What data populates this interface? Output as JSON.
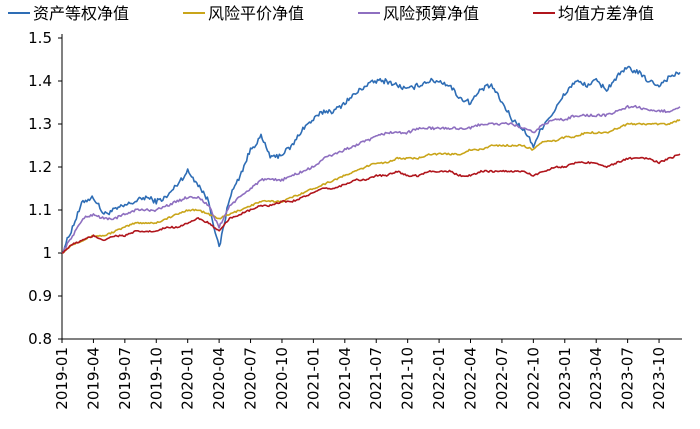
{
  "chart_data": {
    "type": "line",
    "title": "",
    "xlabel": "",
    "ylabel": "",
    "ylim": [
      0.8,
      1.5
    ],
    "yticks": [
      "0.8",
      "0.9",
      "1",
      "1.1",
      "1.2",
      "1.3",
      "1.4",
      "1.5"
    ],
    "xticks": [
      "2019-01",
      "2019-04",
      "2019-07",
      "2019-10",
      "2020-01",
      "2020-04",
      "2020-07",
      "2020-10",
      "2021-01",
      "2021-04",
      "2021-07",
      "2021-10",
      "2022-01",
      "2022-04",
      "2022-07",
      "2022-10",
      "2023-01",
      "2023-04",
      "2023-07",
      "2023-10"
    ],
    "grid": false,
    "legend_position": "top",
    "series": [
      {
        "name": "资产等权净值",
        "color": "#2e6db5",
        "points": [
          [
            "2019-01",
            1.0
          ],
          [
            "2019-02",
            1.06
          ],
          [
            "2019-03",
            1.12
          ],
          [
            "2019-04",
            1.13
          ],
          [
            "2019-05",
            1.09
          ],
          [
            "2019-06",
            1.1
          ],
          [
            "2019-07",
            1.11
          ],
          [
            "2019-08",
            1.12
          ],
          [
            "2019-09",
            1.13
          ],
          [
            "2019-10",
            1.12
          ],
          [
            "2019-11",
            1.13
          ],
          [
            "2019-12",
            1.16
          ],
          [
            "2020-01",
            1.19
          ],
          [
            "2020-02",
            1.16
          ],
          [
            "2020-03",
            1.12
          ],
          [
            "2020-04",
            1.01
          ],
          [
            "2020-05",
            1.13
          ],
          [
            "2020-06",
            1.18
          ],
          [
            "2020-07",
            1.24
          ],
          [
            "2020-08",
            1.27
          ],
          [
            "2020-09",
            1.22
          ],
          [
            "2020-10",
            1.23
          ],
          [
            "2020-11",
            1.25
          ],
          [
            "2020-12",
            1.29
          ],
          [
            "2021-01",
            1.31
          ],
          [
            "2021-02",
            1.33
          ],
          [
            "2021-03",
            1.33
          ],
          [
            "2021-04",
            1.35
          ],
          [
            "2021-05",
            1.37
          ],
          [
            "2021-06",
            1.39
          ],
          [
            "2021-07",
            1.4
          ],
          [
            "2021-08",
            1.4
          ],
          [
            "2021-09",
            1.39
          ],
          [
            "2021-10",
            1.38
          ],
          [
            "2021-11",
            1.39
          ],
          [
            "2021-12",
            1.4
          ],
          [
            "2022-01",
            1.4
          ],
          [
            "2022-02",
            1.39
          ],
          [
            "2022-03",
            1.36
          ],
          [
            "2022-04",
            1.35
          ],
          [
            "2022-05",
            1.38
          ],
          [
            "2022-06",
            1.39
          ],
          [
            "2022-07",
            1.35
          ],
          [
            "2022-08",
            1.31
          ],
          [
            "2022-09",
            1.29
          ],
          [
            "2022-10",
            1.25
          ],
          [
            "2022-11",
            1.3
          ],
          [
            "2022-12",
            1.33
          ],
          [
            "2023-01",
            1.37
          ],
          [
            "2023-02",
            1.4
          ],
          [
            "2023-03",
            1.39
          ],
          [
            "2023-04",
            1.4
          ],
          [
            "2023-05",
            1.38
          ],
          [
            "2023-06",
            1.41
          ],
          [
            "2023-07",
            1.43
          ],
          [
            "2023-08",
            1.42
          ],
          [
            "2023-09",
            1.4
          ],
          [
            "2023-10",
            1.39
          ],
          [
            "2023-11",
            1.41
          ],
          [
            "2023-12",
            1.42
          ]
        ]
      },
      {
        "name": "风险平价净值",
        "color": "#c9a51a",
        "points": [
          [
            "2019-01",
            1.0
          ],
          [
            "2019-02",
            1.02
          ],
          [
            "2019-03",
            1.03
          ],
          [
            "2019-04",
            1.04
          ],
          [
            "2019-05",
            1.04
          ],
          [
            "2019-06",
            1.05
          ],
          [
            "2019-07",
            1.06
          ],
          [
            "2019-08",
            1.07
          ],
          [
            "2019-09",
            1.07
          ],
          [
            "2019-10",
            1.07
          ],
          [
            "2019-11",
            1.08
          ],
          [
            "2019-12",
            1.09
          ],
          [
            "2020-01",
            1.1
          ],
          [
            "2020-02",
            1.1
          ],
          [
            "2020-03",
            1.09
          ],
          [
            "2020-04",
            1.08
          ],
          [
            "2020-05",
            1.09
          ],
          [
            "2020-06",
            1.1
          ],
          [
            "2020-07",
            1.11
          ],
          [
            "2020-08",
            1.12
          ],
          [
            "2020-09",
            1.12
          ],
          [
            "2020-10",
            1.12
          ],
          [
            "2020-11",
            1.13
          ],
          [
            "2020-12",
            1.14
          ],
          [
            "2021-01",
            1.15
          ],
          [
            "2021-02",
            1.16
          ],
          [
            "2021-03",
            1.17
          ],
          [
            "2021-04",
            1.18
          ],
          [
            "2021-05",
            1.19
          ],
          [
            "2021-06",
            1.2
          ],
          [
            "2021-07",
            1.21
          ],
          [
            "2021-08",
            1.21
          ],
          [
            "2021-09",
            1.22
          ],
          [
            "2021-10",
            1.22
          ],
          [
            "2021-11",
            1.22
          ],
          [
            "2021-12",
            1.23
          ],
          [
            "2022-01",
            1.23
          ],
          [
            "2022-02",
            1.23
          ],
          [
            "2022-03",
            1.23
          ],
          [
            "2022-04",
            1.24
          ],
          [
            "2022-05",
            1.24
          ],
          [
            "2022-06",
            1.25
          ],
          [
            "2022-07",
            1.25
          ],
          [
            "2022-08",
            1.25
          ],
          [
            "2022-09",
            1.25
          ],
          [
            "2022-10",
            1.24
          ],
          [
            "2022-11",
            1.26
          ],
          [
            "2022-12",
            1.26
          ],
          [
            "2023-01",
            1.27
          ],
          [
            "2023-02",
            1.27
          ],
          [
            "2023-03",
            1.28
          ],
          [
            "2023-04",
            1.28
          ],
          [
            "2023-05",
            1.28
          ],
          [
            "2023-06",
            1.29
          ],
          [
            "2023-07",
            1.3
          ],
          [
            "2023-08",
            1.3
          ],
          [
            "2023-09",
            1.3
          ],
          [
            "2023-10",
            1.3
          ],
          [
            "2023-11",
            1.3
          ],
          [
            "2023-12",
            1.31
          ]
        ]
      },
      {
        "name": "风险预算净值",
        "color": "#8e6fc0",
        "points": [
          [
            "2019-01",
            1.0
          ],
          [
            "2019-02",
            1.04
          ],
          [
            "2019-03",
            1.08
          ],
          [
            "2019-04",
            1.09
          ],
          [
            "2019-05",
            1.08
          ],
          [
            "2019-06",
            1.08
          ],
          [
            "2019-07",
            1.09
          ],
          [
            "2019-08",
            1.1
          ],
          [
            "2019-09",
            1.1
          ],
          [
            "2019-10",
            1.1
          ],
          [
            "2019-11",
            1.11
          ],
          [
            "2019-12",
            1.12
          ],
          [
            "2020-01",
            1.13
          ],
          [
            "2020-02",
            1.13
          ],
          [
            "2020-03",
            1.11
          ],
          [
            "2020-04",
            1.06
          ],
          [
            "2020-05",
            1.11
          ],
          [
            "2020-06",
            1.13
          ],
          [
            "2020-07",
            1.15
          ],
          [
            "2020-08",
            1.17
          ],
          [
            "2020-09",
            1.17
          ],
          [
            "2020-10",
            1.17
          ],
          [
            "2020-11",
            1.18
          ],
          [
            "2020-12",
            1.19
          ],
          [
            "2021-01",
            1.2
          ],
          [
            "2021-02",
            1.22
          ],
          [
            "2021-03",
            1.23
          ],
          [
            "2021-04",
            1.24
          ],
          [
            "2021-05",
            1.25
          ],
          [
            "2021-06",
            1.26
          ],
          [
            "2021-07",
            1.27
          ],
          [
            "2021-08",
            1.28
          ],
          [
            "2021-09",
            1.28
          ],
          [
            "2021-10",
            1.28
          ],
          [
            "2021-11",
            1.29
          ],
          [
            "2021-12",
            1.29
          ],
          [
            "2022-01",
            1.29
          ],
          [
            "2022-02",
            1.29
          ],
          [
            "2022-03",
            1.29
          ],
          [
            "2022-04",
            1.29
          ],
          [
            "2022-05",
            1.3
          ],
          [
            "2022-06",
            1.3
          ],
          [
            "2022-07",
            1.3
          ],
          [
            "2022-08",
            1.3
          ],
          [
            "2022-09",
            1.29
          ],
          [
            "2022-10",
            1.28
          ],
          [
            "2022-11",
            1.3
          ],
          [
            "2022-12",
            1.31
          ],
          [
            "2023-01",
            1.31
          ],
          [
            "2023-02",
            1.32
          ],
          [
            "2023-03",
            1.32
          ],
          [
            "2023-04",
            1.32
          ],
          [
            "2023-05",
            1.32
          ],
          [
            "2023-06",
            1.33
          ],
          [
            "2023-07",
            1.34
          ],
          [
            "2023-08",
            1.34
          ],
          [
            "2023-09",
            1.33
          ],
          [
            "2023-10",
            1.33
          ],
          [
            "2023-11",
            1.33
          ],
          [
            "2023-12",
            1.34
          ]
        ]
      },
      {
        "name": "均值方差净值",
        "color": "#b0151c",
        "points": [
          [
            "2019-01",
            1.0
          ],
          [
            "2019-02",
            1.02
          ],
          [
            "2019-03",
            1.03
          ],
          [
            "2019-04",
            1.04
          ],
          [
            "2019-05",
            1.03
          ],
          [
            "2019-06",
            1.04
          ],
          [
            "2019-07",
            1.04
          ],
          [
            "2019-08",
            1.05
          ],
          [
            "2019-09",
            1.05
          ],
          [
            "2019-10",
            1.05
          ],
          [
            "2019-11",
            1.06
          ],
          [
            "2019-12",
            1.06
          ],
          [
            "2020-01",
            1.07
          ],
          [
            "2020-02",
            1.08
          ],
          [
            "2020-03",
            1.07
          ],
          [
            "2020-04",
            1.05
          ],
          [
            "2020-05",
            1.08
          ],
          [
            "2020-06",
            1.09
          ],
          [
            "2020-07",
            1.1
          ],
          [
            "2020-08",
            1.11
          ],
          [
            "2020-09",
            1.11
          ],
          [
            "2020-10",
            1.12
          ],
          [
            "2020-11",
            1.12
          ],
          [
            "2020-12",
            1.13
          ],
          [
            "2021-01",
            1.14
          ],
          [
            "2021-02",
            1.15
          ],
          [
            "2021-03",
            1.15
          ],
          [
            "2021-04",
            1.16
          ],
          [
            "2021-05",
            1.17
          ],
          [
            "2021-06",
            1.17
          ],
          [
            "2021-07",
            1.18
          ],
          [
            "2021-08",
            1.18
          ],
          [
            "2021-09",
            1.19
          ],
          [
            "2021-10",
            1.18
          ],
          [
            "2021-11",
            1.18
          ],
          [
            "2021-12",
            1.19
          ],
          [
            "2022-01",
            1.19
          ],
          [
            "2022-02",
            1.19
          ],
          [
            "2022-03",
            1.18
          ],
          [
            "2022-04",
            1.18
          ],
          [
            "2022-05",
            1.19
          ],
          [
            "2022-06",
            1.19
          ],
          [
            "2022-07",
            1.19
          ],
          [
            "2022-08",
            1.19
          ],
          [
            "2022-09",
            1.19
          ],
          [
            "2022-10",
            1.18
          ],
          [
            "2022-11",
            1.19
          ],
          [
            "2022-12",
            1.2
          ],
          [
            "2023-01",
            1.2
          ],
          [
            "2023-02",
            1.21
          ],
          [
            "2023-03",
            1.21
          ],
          [
            "2023-04",
            1.21
          ],
          [
            "2023-05",
            1.2
          ],
          [
            "2023-06",
            1.21
          ],
          [
            "2023-07",
            1.22
          ],
          [
            "2023-08",
            1.22
          ],
          [
            "2023-09",
            1.22
          ],
          [
            "2023-10",
            1.21
          ],
          [
            "2023-11",
            1.22
          ],
          [
            "2023-12",
            1.23
          ]
        ]
      }
    ]
  }
}
